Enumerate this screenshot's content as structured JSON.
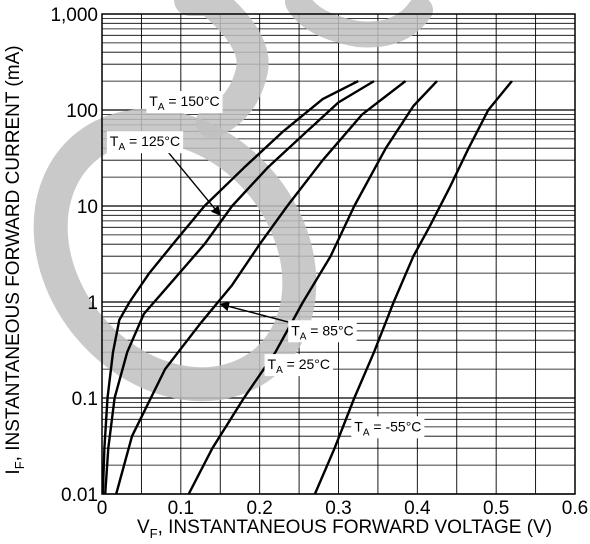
{
  "chart_data": {
    "type": "line",
    "title": "",
    "xlabel": {
      "main": "V",
      "sub": "F",
      "rest": ", INSTANTANEOUS FORWARD VOLTAGE (V)"
    },
    "ylabel": {
      "main": "I",
      "sub": "F",
      "rest": ", INSTANTANEOUS FORWARD CURRENT (mA)"
    },
    "x_axis": {
      "scale": "linear",
      "min": 0,
      "max": 0.6,
      "major_step": 0.1,
      "minor_step": 0.05,
      "tick_labels": [
        "0",
        "0.1",
        "0.2",
        "0.3",
        "0.4",
        "0.5",
        "0.6"
      ]
    },
    "y_axis": {
      "scale": "log",
      "min": 0.01,
      "max": 1000,
      "tick_values": [
        0.01,
        0.1,
        1,
        10,
        100,
        1000
      ],
      "tick_labels": [
        "0.01",
        "0.1",
        "1",
        "10",
        "100",
        "1,000"
      ]
    },
    "grid": true,
    "series": [
      {
        "name": "T_A = 150°C",
        "points": [
          [
            0.001,
            0.01
          ],
          [
            0.003,
            0.03
          ],
          [
            0.007,
            0.1
          ],
          [
            0.014,
            0.3
          ],
          [
            0.022,
            0.65
          ],
          [
            0.035,
            1.0
          ],
          [
            0.06,
            2.0
          ],
          [
            0.095,
            4.5
          ],
          [
            0.13,
            10
          ],
          [
            0.18,
            25
          ],
          [
            0.23,
            60
          ],
          [
            0.28,
            130
          ],
          [
            0.325,
            200
          ]
        ]
      },
      {
        "name": "T_A = 125°C",
        "points": [
          [
            0.004,
            0.01
          ],
          [
            0.008,
            0.03
          ],
          [
            0.016,
            0.1
          ],
          [
            0.032,
            0.3
          ],
          [
            0.053,
            0.75
          ],
          [
            0.085,
            1.5
          ],
          [
            0.13,
            4
          ],
          [
            0.165,
            10
          ],
          [
            0.21,
            25
          ],
          [
            0.26,
            60
          ],
          [
            0.3,
            120
          ],
          [
            0.345,
            200
          ]
        ]
      },
      {
        "name": "T_A = 85°C",
        "points": [
          [
            0.018,
            0.01
          ],
          [
            0.038,
            0.04
          ],
          [
            0.08,
            0.2
          ],
          [
            0.125,
            0.6
          ],
          [
            0.165,
            1.5
          ],
          [
            0.2,
            4
          ],
          [
            0.235,
            10
          ],
          [
            0.28,
            30
          ],
          [
            0.33,
            90
          ],
          [
            0.385,
            200
          ]
        ]
      },
      {
        "name": "T_A = 25°C",
        "points": [
          [
            0.11,
            0.01
          ],
          [
            0.14,
            0.03
          ],
          [
            0.18,
            0.1
          ],
          [
            0.22,
            0.3
          ],
          [
            0.255,
            1
          ],
          [
            0.29,
            3
          ],
          [
            0.32,
            10
          ],
          [
            0.36,
            40
          ],
          [
            0.395,
            110
          ],
          [
            0.425,
            200
          ]
        ]
      },
      {
        "name": "T_A = -55°C",
        "points": [
          [
            0.27,
            0.01
          ],
          [
            0.295,
            0.03
          ],
          [
            0.32,
            0.1
          ],
          [
            0.345,
            0.3
          ],
          [
            0.37,
            1
          ],
          [
            0.395,
            3
          ],
          [
            0.415,
            6
          ],
          [
            0.44,
            15
          ],
          [
            0.465,
            40
          ],
          [
            0.49,
            100
          ],
          [
            0.52,
            200
          ]
        ]
      }
    ],
    "annotations": [
      {
        "prefix": "T",
        "sub": "A",
        "text": " = 150°C",
        "series": "T_A = 150°C",
        "x": 0.06,
        "y": 110
      },
      {
        "prefix": "T",
        "sub": "A",
        "text": " = 125°C",
        "series": "T_A = 125°C",
        "x": 0.01,
        "y": 42,
        "arrow_to": [
          0.15,
          8
        ]
      },
      {
        "prefix": "T",
        "sub": "A",
        "text": " = 85°C",
        "series": "T_A = 85°C",
        "x": 0.24,
        "y": 0.45,
        "arrow_to": [
          0.15,
          0.95
        ]
      },
      {
        "prefix": "T",
        "sub": "A",
        "text": " = 25°C",
        "series": "T_A = 25°C",
        "x": 0.21,
        "y": 0.2
      },
      {
        "prefix": "T",
        "sub": "A",
        "text": " = -55°C",
        "series": "T_A = -55°C",
        "x": 0.32,
        "y": 0.045
      }
    ],
    "watermark_color": "#c0c0c0",
    "line_color": "#000000",
    "grid_color": "#000000"
  }
}
